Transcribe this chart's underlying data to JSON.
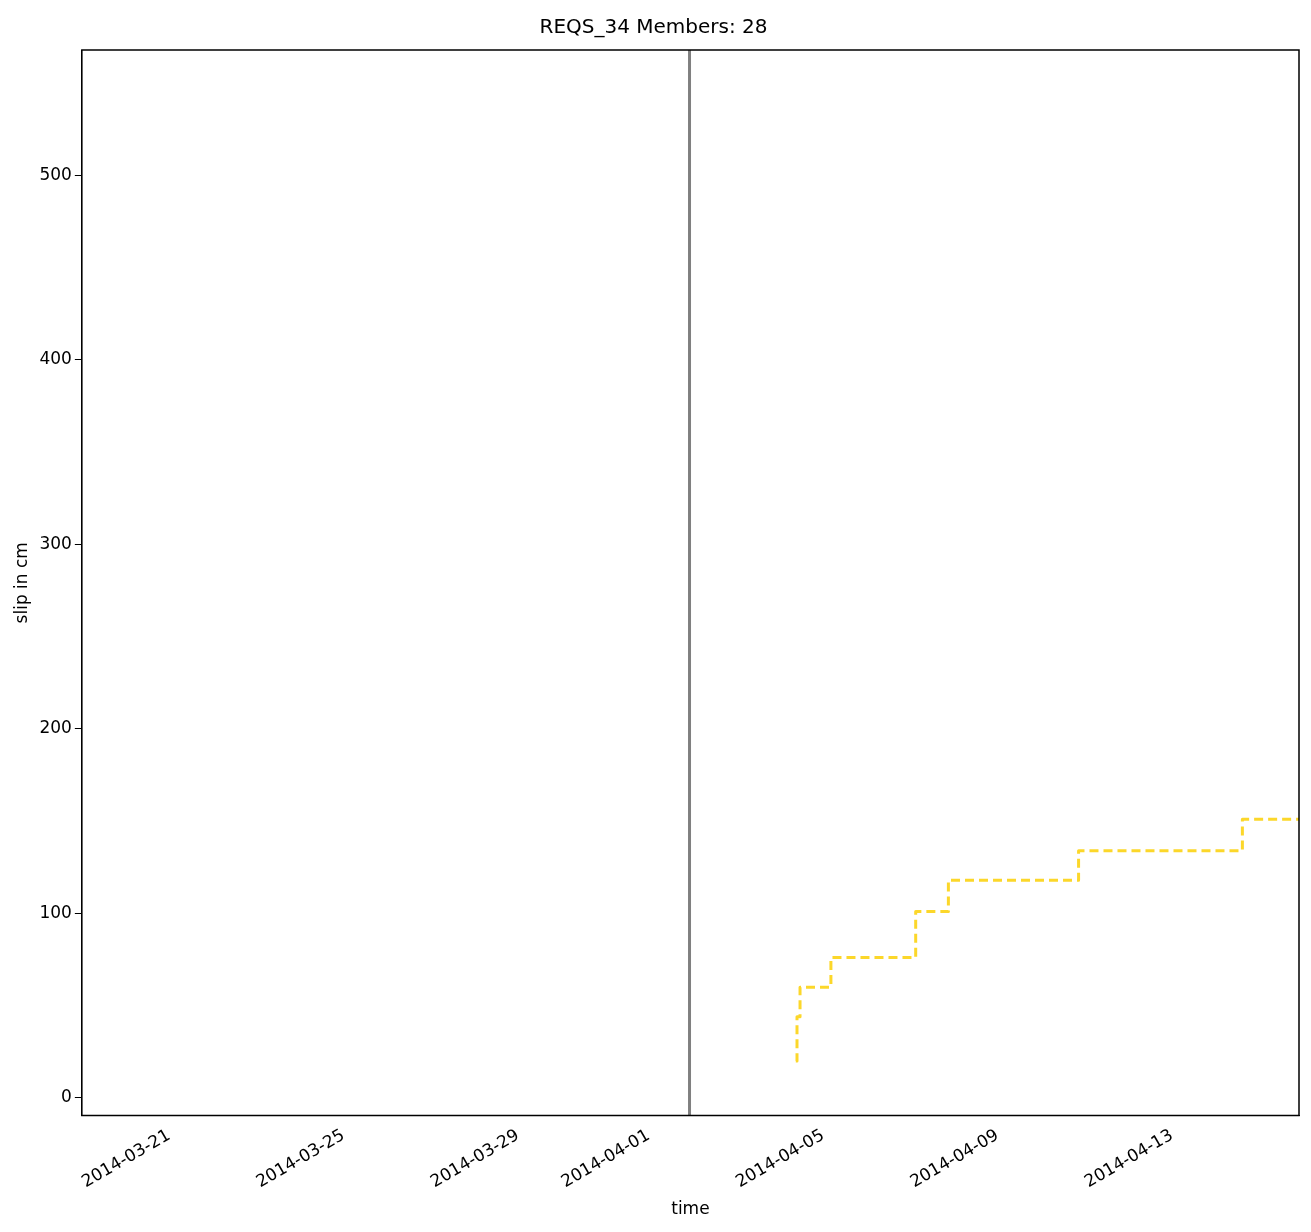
{
  "chart_data": {
    "type": "step",
    "title": "REQS_34 Members: 28",
    "xlabel": "time",
    "ylabel": "slip in cm",
    "x": [
      "2014-04-04T09:00",
      "2014-04-04T09:40",
      "2014-04-04T11:20",
      "2014-04-05T04:20",
      "2014-04-07T03:00",
      "2014-04-07T21:00",
      "2014-04-10T20:40",
      "2014-04-14T14:50",
      "2014-04-15T22:00"
    ],
    "series": [
      {
        "color": "#fcd72a",
        "values": [
          20,
          44,
          60,
          76,
          101,
          118,
          134,
          151,
          151
        ]
      }
    ],
    "xlim": [
      "2014-03-19T00:00",
      "2014-04-15T22:00"
    ],
    "xticks": [
      "2014-03-21",
      "2014-03-25",
      "2014-03-29",
      "2014-04-01",
      "2014-04-05",
      "2014-04-09",
      "2014-04-13"
    ],
    "ylim": [
      -9.6,
      568
    ],
    "yticks": [
      0,
      100,
      200,
      300,
      400,
      500
    ],
    "ref_lines": [
      {
        "axis": "x",
        "value": "2014-04-01T22:30",
        "color": "#808080",
        "line_style": "solid"
      }
    ],
    "line_style": "dashed",
    "marker": "none",
    "grid": false,
    "legend": false
  }
}
